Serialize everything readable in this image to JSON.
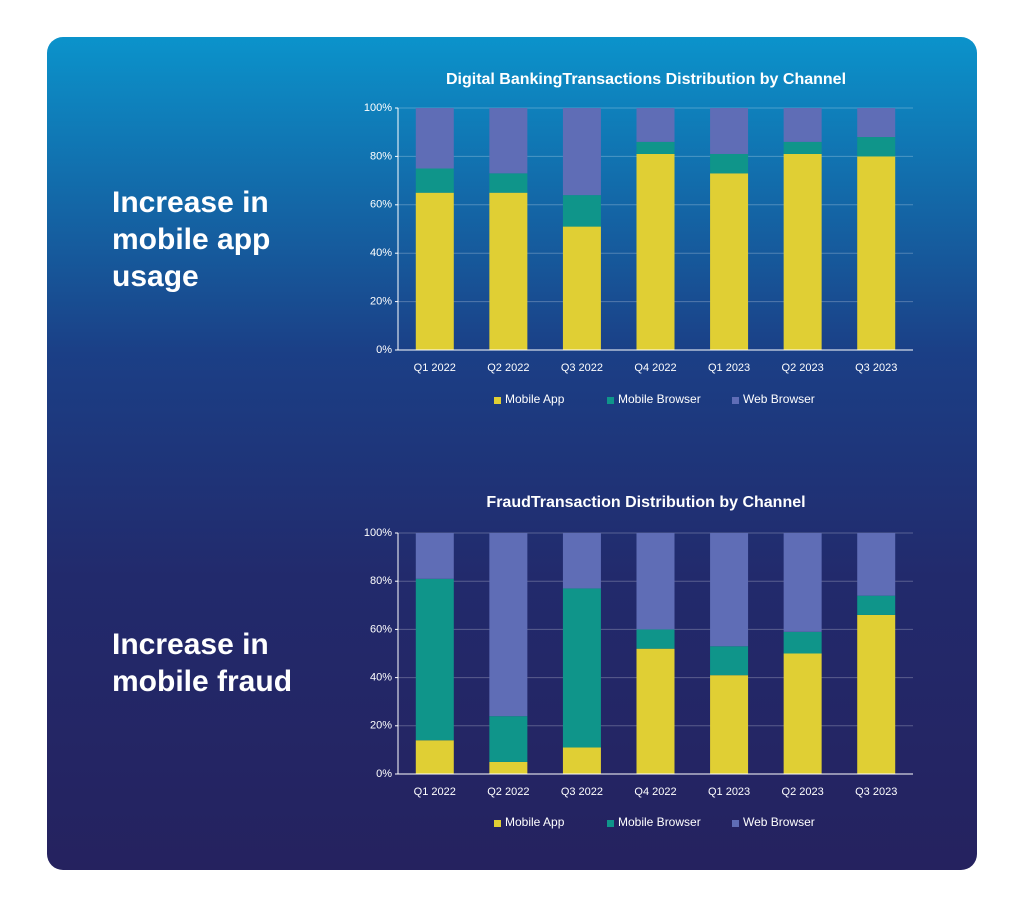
{
  "chart_data": [
    {
      "type": "stacked_bar",
      "title": "Digital BankingTransactions Distribution by Channel",
      "annotation": "Increase in mobile app usage",
      "categories": [
        "Q1 2022",
        "Q2 2022",
        "Q3 2022",
        "Q4 2022",
        "Q1 2023",
        "Q2 2023",
        "Q3 2023"
      ],
      "series": [
        {
          "name": "Mobile App",
          "color": "#e0cf34",
          "values": [
            65,
            65,
            51,
            81,
            73,
            81,
            80
          ]
        },
        {
          "name": "Mobile Browser",
          "color": "#0f958a",
          "values": [
            10,
            8,
            13,
            5,
            8,
            5,
            8
          ]
        },
        {
          "name": "Web Browser",
          "color": "#5f6db6",
          "values": [
            25,
            27,
            36,
            14,
            19,
            14,
            12
          ]
        }
      ],
      "ylim": [
        0,
        100
      ],
      "yticks": [
        {
          "value": 0,
          "label": "0%"
        },
        {
          "value": 20,
          "label": "20%"
        },
        {
          "value": 40,
          "label": "40%"
        },
        {
          "value": 60,
          "label": "60%"
        },
        {
          "value": 80,
          "label": "80%"
        },
        {
          "value": 100,
          "label": "100%"
        }
      ],
      "grid": true,
      "legend": "bottom"
    },
    {
      "type": "stacked_bar",
      "title": "FraudTransaction Distribution by Channel",
      "annotation": "Increase in mobile fraud",
      "categories": [
        "Q1 2022",
        "Q2 2022",
        "Q3 2022",
        "Q4 2022",
        "Q1 2023",
        "Q2 2023",
        "Q3 2023"
      ],
      "series": [
        {
          "name": "Mobile App",
          "color": "#e0cf34",
          "values": [
            14,
            5,
            11,
            52,
            41,
            50,
            66
          ]
        },
        {
          "name": "Mobile Browser",
          "color": "#0f958a",
          "values": [
            67,
            19,
            66,
            8,
            12,
            9,
            8
          ]
        },
        {
          "name": "Web Browser",
          "color": "#5f6db6",
          "values": [
            19,
            76,
            23,
            40,
            47,
            41,
            26
          ]
        }
      ],
      "ylim": [
        0,
        100
      ],
      "yticks": [
        {
          "value": 0,
          "label": "0%"
        },
        {
          "value": 20,
          "label": "20%"
        },
        {
          "value": 40,
          "label": "40%"
        },
        {
          "value": 60,
          "label": "60%"
        },
        {
          "value": 80,
          "label": "80%"
        },
        {
          "value": 100,
          "label": "100%"
        }
      ],
      "grid": true,
      "legend": "bottom"
    }
  ]
}
